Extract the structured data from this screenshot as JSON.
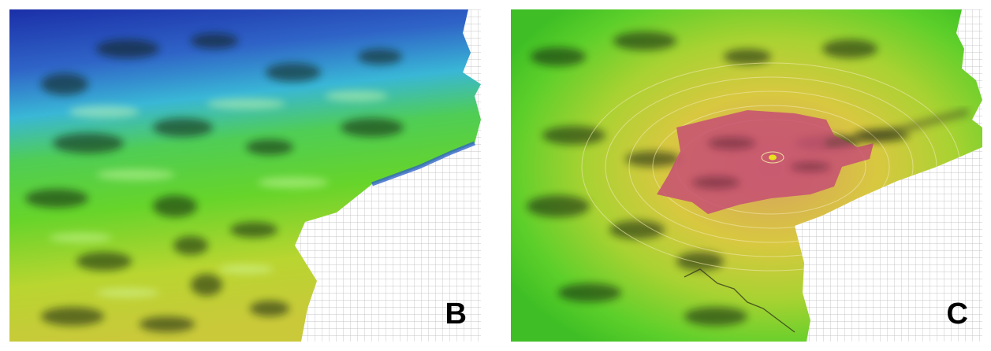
{
  "panels": [
    {
      "id": "b",
      "label": "B",
      "colormap": "elevation-blue-green-yellow"
    },
    {
      "id": "c",
      "label": "C",
      "colormap": "inundation-red-yellow-green"
    }
  ],
  "colors": {
    "deep_blue": "#1b2fa8",
    "cyan": "#39b7d6",
    "green": "#56d42a",
    "yellow_green": "#b9d530",
    "yellow": "#d9c82e",
    "red_zone": "#c74f73",
    "mesh": "#bfbfbf",
    "background": "#ffffff"
  }
}
